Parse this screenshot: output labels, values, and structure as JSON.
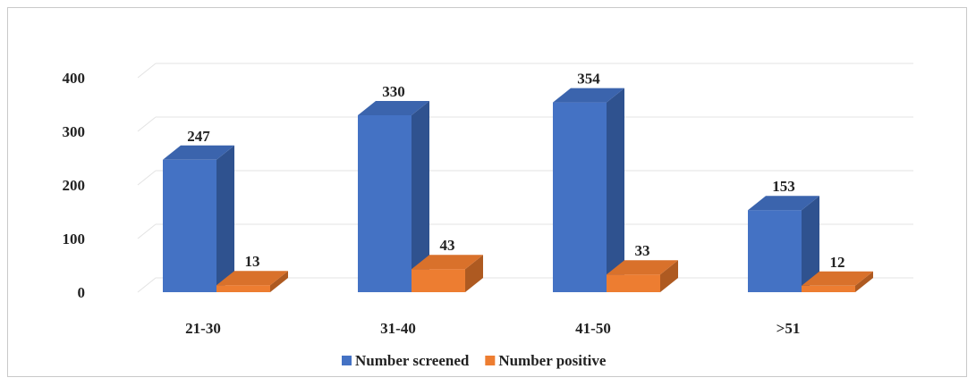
{
  "chart_data": {
    "type": "bar",
    "categories": [
      "21-30",
      "31-40",
      "41-50",
      ">51"
    ],
    "series": [
      {
        "name": "Number screened",
        "values": [
          247,
          330,
          354,
          153
        ],
        "color": "#4472c4",
        "side_color": "#2f528f",
        "top_color": "#3b64ad"
      },
      {
        "name": "Number positive",
        "values": [
          13,
          43,
          33,
          12
        ],
        "color": "#ed7d31",
        "side_color": "#ae5a21",
        "top_color": "#d9712b"
      }
    ],
    "y_ticks": [
      "0",
      "100",
      "200",
      "300",
      "400"
    ],
    "ylim": [
      0,
      400
    ],
    "grid": true,
    "legend": "bottom-center",
    "title": "",
    "xlabel": "",
    "ylabel": ""
  }
}
